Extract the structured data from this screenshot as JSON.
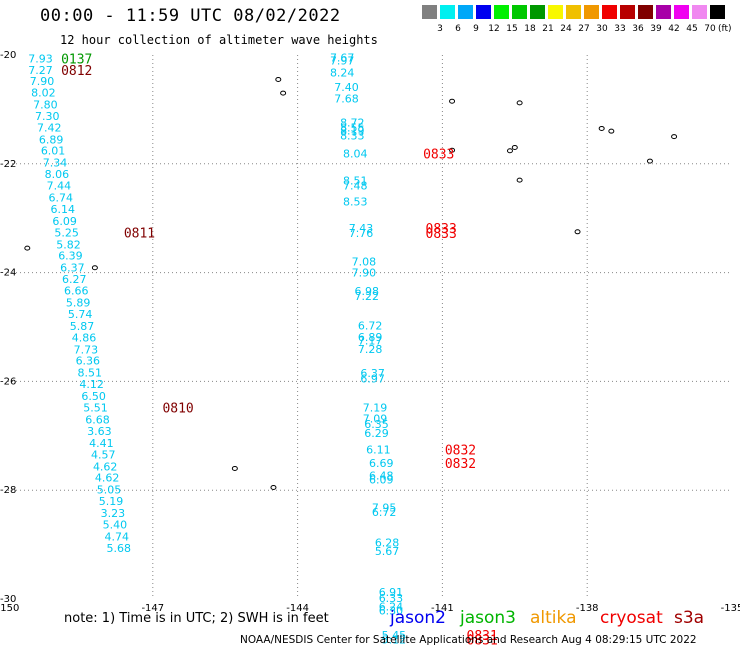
{
  "title": "00:00 - 11:59 UTC 08/02/2022",
  "subtitle": "12 hour collection of altimeter wave heights",
  "color_scale": {
    "colors": [
      "#808080",
      "#00f0f0",
      "#00a8f8",
      "#0000f0",
      "#00f000",
      "#00c800",
      "#009800",
      "#f8f800",
      "#f0c000",
      "#f09800",
      "#f00000",
      "#b80000",
      "#800000",
      "#a800a8",
      "#f000f0",
      "#f088f0",
      "#000000"
    ],
    "labels": [
      "3",
      "6",
      "9",
      "12",
      "15",
      "18",
      "21",
      "24",
      "27",
      "30",
      "33",
      "36",
      "39",
      "42",
      "45",
      "70"
    ],
    "unit": "(ft)"
  },
  "chart_data": {
    "type": "scatter",
    "title": "00:00 - 11:59 UTC 08/02/2022",
    "subtitle": "12 hour collection of altimeter wave heights",
    "xlabel": "",
    "ylabel": "",
    "xlim": [
      -150,
      -135
    ],
    "ylim": [
      -30,
      -20
    ],
    "xticks": [
      "-150",
      "-147",
      "-144",
      "-141",
      "-138",
      "-135"
    ],
    "yticks": [
      "-20",
      "-22",
      "-24",
      "-26",
      "-28",
      "-30"
    ],
    "grid": true,
    "series": [
      {
        "name": "jason3",
        "color": "#00c8f0",
        "points": [
          {
            "lon": -149.58,
            "lat": -20.06,
            "swh": "7.93"
          },
          {
            "lon": -149.58,
            "lat": -20.28,
            "swh": "7.27"
          },
          {
            "lon": -149.55,
            "lat": -20.48,
            "swh": "7.90"
          },
          {
            "lon": -149.52,
            "lat": -20.69,
            "swh": "8.02"
          },
          {
            "lon": -149.48,
            "lat": -20.91,
            "swh": "7.80"
          },
          {
            "lon": -149.44,
            "lat": -21.12,
            "swh": "7.30"
          },
          {
            "lon": -149.4,
            "lat": -21.33,
            "swh": "7.42"
          },
          {
            "lon": -149.36,
            "lat": -21.55,
            "swh": "6.89"
          },
          {
            "lon": -149.32,
            "lat": -21.76,
            "swh": "6.01"
          },
          {
            "lon": -149.28,
            "lat": -21.98,
            "swh": "7.34"
          },
          {
            "lon": -149.24,
            "lat": -22.19,
            "swh": "8.06"
          },
          {
            "lon": -149.2,
            "lat": -22.4,
            "swh": "7.44"
          },
          {
            "lon": -149.16,
            "lat": -22.62,
            "swh": "6.74"
          },
          {
            "lon": -149.12,
            "lat": -22.83,
            "swh": "6.14"
          },
          {
            "lon": -149.08,
            "lat": -23.05,
            "swh": "6.09"
          },
          {
            "lon": -149.04,
            "lat": -23.26,
            "swh": "5.25"
          },
          {
            "lon": -149.0,
            "lat": -23.48,
            "swh": "5.82"
          },
          {
            "lon": -148.96,
            "lat": -23.69,
            "swh": "6.39"
          },
          {
            "lon": -148.92,
            "lat": -23.91,
            "swh": "6.37"
          },
          {
            "lon": -148.88,
            "lat": -24.12,
            "swh": "6.27"
          },
          {
            "lon": -148.84,
            "lat": -24.33,
            "swh": "6.66"
          },
          {
            "lon": -148.8,
            "lat": -24.55,
            "swh": "5.89"
          },
          {
            "lon": -148.76,
            "lat": -24.76,
            "swh": "5.74"
          },
          {
            "lon": -148.72,
            "lat": -24.98,
            "swh": "5.87"
          },
          {
            "lon": -148.68,
            "lat": -25.19,
            "swh": "4.86"
          },
          {
            "lon": -148.64,
            "lat": -25.41,
            "swh": "7.73"
          },
          {
            "lon": -148.6,
            "lat": -25.62,
            "swh": "6.36"
          },
          {
            "lon": -148.56,
            "lat": -25.84,
            "swh": "8.51"
          },
          {
            "lon": -148.52,
            "lat": -26.05,
            "swh": "4.12"
          },
          {
            "lon": -148.48,
            "lat": -26.27,
            "swh": "6.50"
          },
          {
            "lon": -148.44,
            "lat": -26.48,
            "swh": "5.51"
          },
          {
            "lon": -148.4,
            "lat": -26.7,
            "swh": "6.68"
          },
          {
            "lon": -148.36,
            "lat": -26.91,
            "swh": "3.63"
          },
          {
            "lon": -148.32,
            "lat": -27.13,
            "swh": "4.41"
          },
          {
            "lon": -148.28,
            "lat": -27.34,
            "swh": "4.57"
          },
          {
            "lon": -148.24,
            "lat": -27.56,
            "swh": "4.62"
          },
          {
            "lon": -148.2,
            "lat": -27.77,
            "swh": "4.62"
          },
          {
            "lon": -148.16,
            "lat": -27.99,
            "swh": "5.05"
          },
          {
            "lon": -148.12,
            "lat": -28.2,
            "swh": "5.19"
          },
          {
            "lon": -148.08,
            "lat": -28.42,
            "swh": "3.23"
          },
          {
            "lon": -148.04,
            "lat": -28.63,
            "swh": "5.40"
          },
          {
            "lon": -148.0,
            "lat": -28.85,
            "swh": "4.74"
          },
          {
            "lon": -147.96,
            "lat": -29.06,
            "swh": "5.68"
          }
        ]
      },
      {
        "name": "jason3-b",
        "color": "#00c8f0",
        "points": [
          {
            "lon": -143.33,
            "lat": -20.05,
            "swh": "7.67"
          },
          {
            "lon": -143.33,
            "lat": -20.1,
            "swh": "7.97"
          },
          {
            "lon": -143.33,
            "lat": -20.32,
            "swh": "8.24"
          },
          {
            "lon": -143.24,
            "lat": -20.59,
            "swh": "7.40"
          },
          {
            "lon": -143.24,
            "lat": -20.8,
            "swh": "7.68"
          },
          {
            "lon": -143.12,
            "lat": -21.24,
            "swh": "8.72"
          },
          {
            "lon": -143.12,
            "lat": -21.33,
            "swh": "8.55"
          },
          {
            "lon": -143.12,
            "lat": -21.39,
            "swh": "8.19"
          },
          {
            "lon": -143.12,
            "lat": -21.48,
            "swh": "8.33"
          },
          {
            "lon": -143.06,
            "lat": -21.81,
            "swh": "8.04"
          },
          {
            "lon": -143.06,
            "lat": -22.31,
            "swh": "8.51"
          },
          {
            "lon": -143.06,
            "lat": -22.4,
            "swh": "7.48"
          },
          {
            "lon": -143.06,
            "lat": -22.69,
            "swh": "8.53"
          },
          {
            "lon": -142.94,
            "lat": -23.18,
            "swh": "7.43"
          },
          {
            "lon": -142.94,
            "lat": -23.27,
            "swh": "7.76"
          },
          {
            "lon": -142.88,
            "lat": -23.8,
            "swh": "7.08"
          },
          {
            "lon": -142.88,
            "lat": -24.0,
            "swh": "7.90"
          },
          {
            "lon": -142.82,
            "lat": -24.34,
            "swh": "6.98"
          },
          {
            "lon": -142.82,
            "lat": -24.43,
            "swh": "7.22"
          },
          {
            "lon": -142.75,
            "lat": -24.97,
            "swh": "6.72"
          },
          {
            "lon": -142.75,
            "lat": -25.18,
            "swh": "6.89"
          },
          {
            "lon": -142.75,
            "lat": -25.25,
            "swh": "7.17"
          },
          {
            "lon": -142.75,
            "lat": -25.4,
            "swh": "7.28"
          },
          {
            "lon": -142.7,
            "lat": -25.85,
            "swh": "6.37"
          },
          {
            "lon": -142.7,
            "lat": -25.95,
            "swh": "6.97"
          },
          {
            "lon": -142.65,
            "lat": -26.48,
            "swh": "7.19"
          },
          {
            "lon": -142.65,
            "lat": -26.68,
            "swh": "7.09"
          },
          {
            "lon": -142.62,
            "lat": -26.78,
            "swh": "6.35"
          },
          {
            "lon": -142.62,
            "lat": -26.95,
            "swh": "6.29"
          },
          {
            "lon": -142.58,
            "lat": -27.25,
            "swh": "6.11"
          },
          {
            "lon": -142.52,
            "lat": -27.5,
            "swh": "6.69"
          },
          {
            "lon": -142.52,
            "lat": -27.73,
            "swh": "6.48"
          },
          {
            "lon": -142.52,
            "lat": -27.8,
            "swh": "6.09"
          },
          {
            "lon": -142.46,
            "lat": -28.32,
            "swh": "7.95"
          },
          {
            "lon": -142.46,
            "lat": -28.4,
            "swh": "6.72"
          },
          {
            "lon": -142.4,
            "lat": -28.96,
            "swh": "6.28"
          },
          {
            "lon": -142.4,
            "lat": -29.12,
            "swh": "5.67"
          },
          {
            "lon": -142.32,
            "lat": -29.87,
            "swh": "6.91"
          },
          {
            "lon": -142.32,
            "lat": -29.98,
            "swh": "6.33"
          },
          {
            "lon": -142.32,
            "lat": -30.14,
            "swh": "6.24"
          },
          {
            "lon": -142.32,
            "lat": -30.21,
            "swh": "6.30"
          },
          {
            "lon": -142.26,
            "lat": -30.66,
            "swh": "5.45"
          },
          {
            "lon": -142.26,
            "lat": -30.74,
            "swh": "5.12"
          }
        ]
      }
    ],
    "time_labels": [
      {
        "text": "0137",
        "color": "#009800",
        "lon": -148.9,
        "lat": -20.06
      },
      {
        "text": "0812",
        "color": "#800000",
        "lon": -148.9,
        "lat": -20.28
      },
      {
        "text": "0811",
        "color": "#800000",
        "lon": -147.6,
        "lat": -23.26
      },
      {
        "text": "0810",
        "color": "#800000",
        "lon": -146.8,
        "lat": -26.48
      },
      {
        "text": "0833",
        "color": "#f00000",
        "lon": -141.4,
        "lat": -21.81
      },
      {
        "text": "0833",
        "color": "#f00000",
        "lon": -141.35,
        "lat": -23.18
      },
      {
        "text": "0833",
        "color": "#f00000",
        "lon": -141.35,
        "lat": -23.27
      },
      {
        "text": "0832",
        "color": "#f00000",
        "lon": -140.95,
        "lat": -27.25
      },
      {
        "text": "0832",
        "color": "#f00000",
        "lon": -140.95,
        "lat": -27.5
      },
      {
        "text": "0831",
        "color": "#f00000",
        "lon": -140.5,
        "lat": -30.66
      },
      {
        "text": "0831",
        "color": "#f00000",
        "lon": -140.5,
        "lat": -30.74
      }
    ]
  },
  "note": "note:  1) Time is in UTC; 2) SWH is in feet",
  "legend": [
    {
      "label": "jason2",
      "color": "#0000f0"
    },
    {
      "label": "jason3",
      "color": "#00b400"
    },
    {
      "label": "altika",
      "color": "#f09800"
    },
    {
      "label": "cryosat",
      "color": "#f00000"
    },
    {
      "label": "s3a",
      "color": "#a00000"
    }
  ],
  "footer": "NOAA/NESDIS Center for Satellite Applications and Research    Aug  4 08:29:15 UTC 2022"
}
